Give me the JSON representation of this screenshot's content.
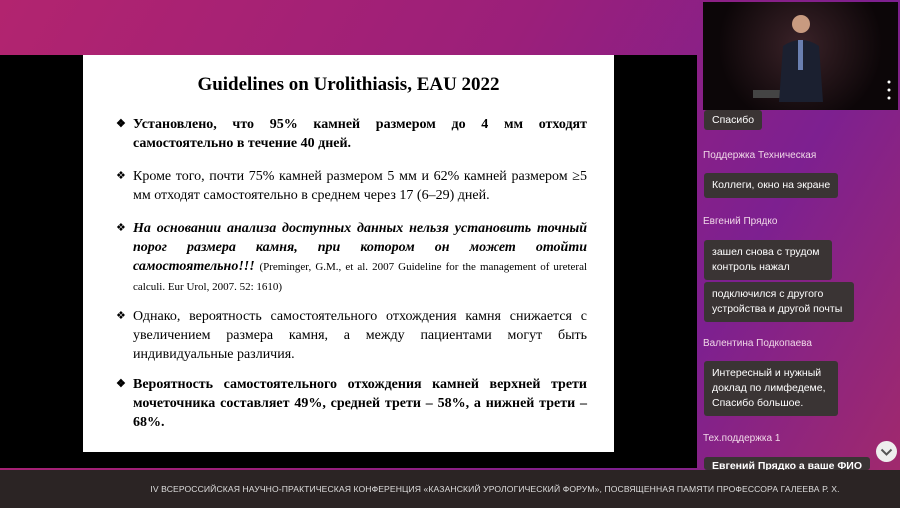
{
  "slide": {
    "title": "Guidelines on Urolithiasis, EAU 2022",
    "bullets": [
      {
        "text": "Установлено, что 95% камней размером до 4 мм отходят самостоятельно в течение 40 дней."
      },
      {
        "text": "Кроме того, почти 75% камней размером 5 мм и 62% камней размером ≥5 мм отходят самостоятельно в среднем через 17 (6–29) дней."
      },
      {
        "text": "На основании анализа доступных данных нельзя установить точный порог размера камня, при котором он может отойти самостоятельно!!!",
        "citation": "(Preminger, G.M., et al. 2007 Guideline for the management of ureteral calculi. Eur Urol, 2007. 52: 1610)"
      },
      {
        "text": "Однако, вероятность самостоятельного отхождения камня снижается с увеличением размера камня, а между пациентами могут быть индивидуальные различия."
      },
      {
        "text": "Вероятность самостоятельного отхождения камней верхней трети мочеточника составляет 49%, средней трети – 58%, а нижней трети – 68%."
      }
    ]
  },
  "chat": {
    "items": [
      {
        "message": "Спасибо"
      },
      {
        "author": "Поддержка Техническая",
        "message": "Коллеги, окно на экране"
      },
      {
        "author": "Евгений Прядко",
        "message": "зашел снова с трудом контроль нажал"
      },
      {
        "message": "подключился с другого устройства и другой почты"
      },
      {
        "author": "Валентина Подкопаева",
        "message": "Интересный и нужный доклад по лимфедеме, Спасибо большое."
      },
      {
        "author": "Тех.поддержка 1",
        "message": "Евгений Прядко а ваше ФИО"
      }
    ]
  },
  "footer": {
    "text": "IV ВСЕРОССИЙСКАЯ НАУЧНО-ПРАКТИЧЕСКАЯ КОНФЕРЕНЦИЯ «КАЗАНСКИЙ УРОЛОГИЧЕСКИЙ ФОРУМ», ПОСВЯЩЕННАЯ ПАМЯТИ ПРОФЕССОРА ГАЛЕЕВА Р. Х."
  }
}
